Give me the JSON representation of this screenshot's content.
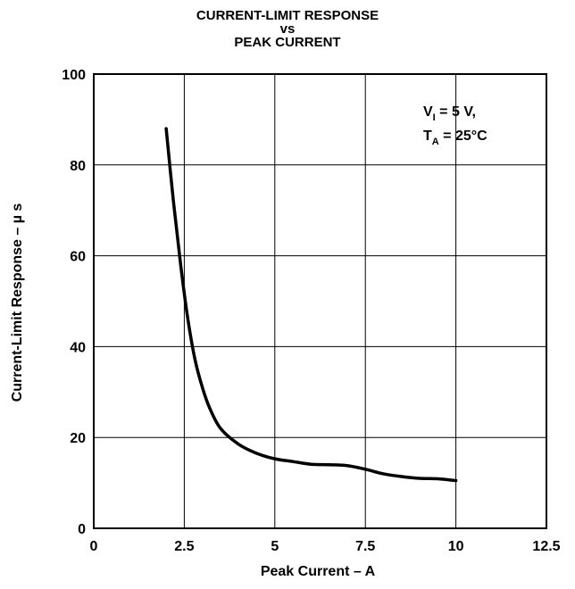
{
  "chart_data": {
    "type": "line",
    "title_lines": [
      "CURRENT-LIMIT RESPONSE",
      "vs",
      "PEAK CURRENT"
    ],
    "xlabel": "Peak Current – A",
    "ylabel": "Current-Limit Response – µ s",
    "xlim": [
      0,
      12.5
    ],
    "ylim": [
      0,
      100
    ],
    "xticks": [
      0,
      2.5,
      5,
      7.5,
      10,
      12.5
    ],
    "xtick_labels": [
      "0",
      "2.5",
      "5",
      "7.5",
      "10",
      "12.5"
    ],
    "yticks": [
      0,
      20,
      40,
      60,
      80,
      100
    ],
    "ytick_labels": [
      "0",
      "20",
      "40",
      "60",
      "80",
      "100"
    ],
    "grid": true,
    "annotation": {
      "line1": {
        "main": "V",
        "sub": "I",
        "rest": " = 5 V,"
      },
      "line2": {
        "main": "T",
        "sub": "A",
        "rest": " = 25°C"
      }
    },
    "series": [
      {
        "color": "#000000",
        "x": [
          2.0,
          2.2,
          2.4,
          2.6,
          2.8,
          3.0,
          3.2,
          3.5,
          4.0,
          4.5,
          5.0,
          5.5,
          6.0,
          6.5,
          7.0,
          7.5,
          8.0,
          8.5,
          9.0,
          9.5,
          10.0
        ],
        "y": [
          88,
          72,
          58,
          46,
          37,
          31,
          26.5,
          22,
          18.5,
          16.5,
          15.3,
          14.7,
          14.1,
          14.0,
          13.8,
          13.0,
          12.0,
          11.4,
          11.0,
          10.9,
          10.5
        ]
      }
    ]
  }
}
